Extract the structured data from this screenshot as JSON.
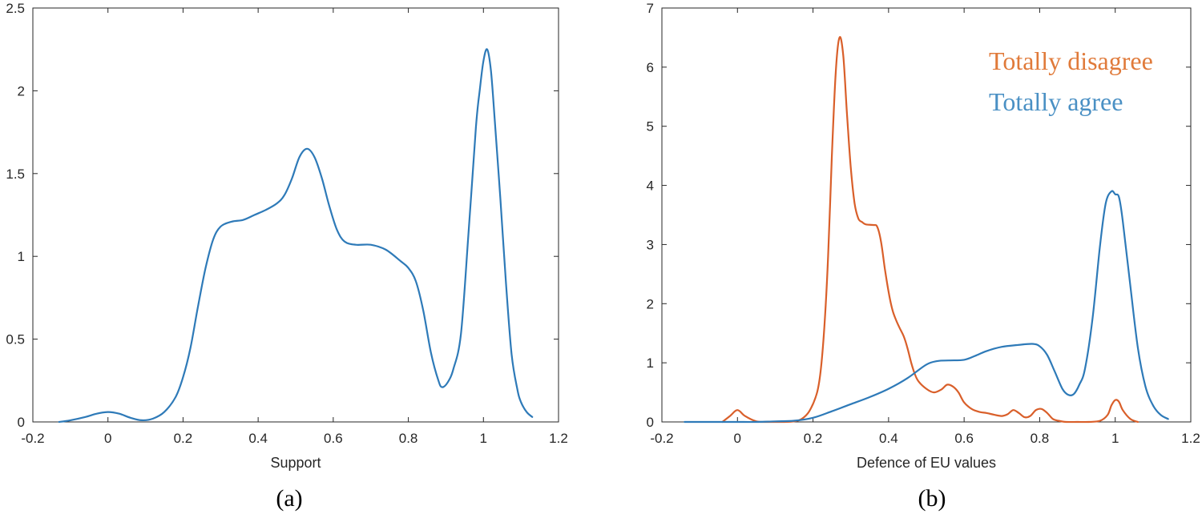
{
  "chart_data": [
    {
      "type": "line",
      "panel_label": "(a)",
      "xlabel": "Support",
      "ylabel": "",
      "xlim": [
        -0.2,
        1.2
      ],
      "ylim": [
        0,
        2.5
      ],
      "xticks": [
        "-0.2",
        "0",
        "0.2",
        "0.4",
        "0.6",
        "0.8",
        "1",
        "1.2"
      ],
      "yticks": [
        "0",
        "0.5",
        "1",
        "1.5",
        "2",
        "2.5"
      ],
      "legend": [],
      "series": [
        {
          "name": "",
          "color": "#2e7ab8",
          "x": [
            -0.13,
            -0.1,
            -0.06,
            -0.03,
            0.0,
            0.03,
            0.06,
            0.09,
            0.12,
            0.15,
            0.18,
            0.2,
            0.22,
            0.24,
            0.26,
            0.28,
            0.3,
            0.33,
            0.36,
            0.39,
            0.42,
            0.45,
            0.47,
            0.49,
            0.51,
            0.53,
            0.55,
            0.57,
            0.59,
            0.61,
            0.63,
            0.66,
            0.7,
            0.74,
            0.78,
            0.8,
            0.82,
            0.84,
            0.86,
            0.88,
            0.89,
            0.905,
            0.92,
            0.94,
            0.96,
            0.98,
            0.99,
            1.0,
            1.01,
            1.02,
            1.03,
            1.045,
            1.06,
            1.075,
            1.09,
            1.1,
            1.115,
            1.13
          ],
          "y": [
            0.0,
            0.01,
            0.03,
            0.05,
            0.06,
            0.05,
            0.025,
            0.01,
            0.02,
            0.06,
            0.15,
            0.27,
            0.45,
            0.7,
            0.93,
            1.1,
            1.18,
            1.21,
            1.22,
            1.25,
            1.28,
            1.32,
            1.37,
            1.47,
            1.6,
            1.65,
            1.6,
            1.47,
            1.3,
            1.16,
            1.09,
            1.07,
            1.07,
            1.04,
            0.97,
            0.93,
            0.85,
            0.67,
            0.42,
            0.25,
            0.21,
            0.24,
            0.32,
            0.53,
            1.13,
            1.78,
            2.0,
            2.18,
            2.25,
            2.12,
            1.83,
            1.35,
            0.84,
            0.41,
            0.2,
            0.12,
            0.06,
            0.03
          ]
        }
      ]
    },
    {
      "type": "line",
      "panel_label": "(b)",
      "xlabel": "Defence of EU values",
      "ylabel": "",
      "xlim": [
        -0.2,
        1.2
      ],
      "ylim": [
        0,
        7
      ],
      "xticks": [
        "-0.2",
        "0",
        "0.2",
        "0.4",
        "0.6",
        "0.8",
        "1",
        "1.2"
      ],
      "yticks": [
        "0",
        "1",
        "2",
        "3",
        "4",
        "5",
        "6",
        "7"
      ],
      "legend": [
        {
          "label": "Totally disagree",
          "color": "#e07a3a"
        },
        {
          "label": "Totally agree",
          "color": "#4a90c4"
        }
      ],
      "series": [
        {
          "name": "Totally disagree",
          "color": "#d95f2a",
          "x": [
            -0.04,
            -0.02,
            0.0,
            0.02,
            0.05,
            0.08,
            0.12,
            0.15,
            0.17,
            0.19,
            0.21,
            0.22,
            0.23,
            0.24,
            0.25,
            0.26,
            0.27,
            0.28,
            0.29,
            0.3,
            0.31,
            0.32,
            0.33,
            0.34,
            0.36,
            0.37,
            0.38,
            0.39,
            0.4,
            0.41,
            0.42,
            0.43,
            0.44,
            0.45,
            0.46,
            0.47,
            0.48,
            0.5,
            0.52,
            0.54,
            0.555,
            0.57,
            0.585,
            0.6,
            0.62,
            0.64,
            0.66,
            0.68,
            0.7,
            0.715,
            0.73,
            0.745,
            0.76,
            0.775,
            0.79,
            0.805,
            0.82,
            0.835,
            0.85,
            0.87,
            0.9,
            0.93,
            0.96,
            0.98,
            0.99,
            1.0,
            1.01,
            1.02,
            1.04,
            1.06
          ],
          "y": [
            0.0,
            0.1,
            0.2,
            0.1,
            0.01,
            0.0,
            0.0,
            0.01,
            0.05,
            0.18,
            0.48,
            0.85,
            1.6,
            2.8,
            4.5,
            5.9,
            6.5,
            6.2,
            5.2,
            4.3,
            3.7,
            3.44,
            3.38,
            3.34,
            3.33,
            3.3,
            3.05,
            2.6,
            2.2,
            1.9,
            1.72,
            1.58,
            1.45,
            1.25,
            1.0,
            0.8,
            0.68,
            0.56,
            0.5,
            0.55,
            0.63,
            0.6,
            0.5,
            0.33,
            0.22,
            0.17,
            0.15,
            0.12,
            0.1,
            0.13,
            0.2,
            0.15,
            0.08,
            0.1,
            0.2,
            0.22,
            0.15,
            0.05,
            0.02,
            0.0,
            0.0,
            0.0,
            0.02,
            0.12,
            0.28,
            0.37,
            0.34,
            0.2,
            0.05,
            0.0
          ]
        },
        {
          "name": "Totally agree",
          "color": "#2e7ab8",
          "x": [
            -0.14,
            -0.1,
            -0.05,
            0.0,
            0.05,
            0.1,
            0.15,
            0.2,
            0.25,
            0.3,
            0.35,
            0.4,
            0.45,
            0.5,
            0.53,
            0.56,
            0.6,
            0.63,
            0.66,
            0.7,
            0.74,
            0.78,
            0.8,
            0.82,
            0.84,
            0.86,
            0.875,
            0.89,
            0.905,
            0.92,
            0.94,
            0.96,
            0.975,
            0.99,
            1.0,
            1.01,
            1.02,
            1.04,
            1.06,
            1.08,
            1.1,
            1.12,
            1.14
          ],
          "y": [
            0.0,
            0.0,
            0.0,
            0.0,
            0.0,
            0.01,
            0.02,
            0.07,
            0.18,
            0.3,
            0.42,
            0.56,
            0.74,
            0.97,
            1.03,
            1.04,
            1.05,
            1.12,
            1.2,
            1.27,
            1.3,
            1.32,
            1.28,
            1.13,
            0.85,
            0.56,
            0.46,
            0.47,
            0.63,
            0.9,
            1.75,
            3.0,
            3.7,
            3.9,
            3.85,
            3.8,
            3.4,
            2.3,
            1.25,
            0.6,
            0.28,
            0.12,
            0.05
          ]
        }
      ]
    }
  ]
}
